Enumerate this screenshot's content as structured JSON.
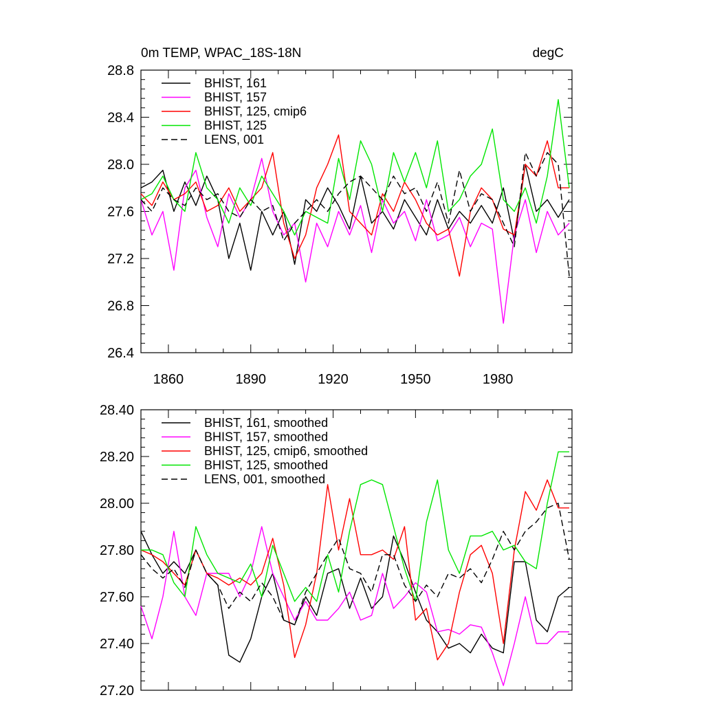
{
  "chart_data": [
    {
      "type": "line",
      "title": "0m TEMP, WPAC_18S-18N",
      "units": "degC",
      "xlabel": "",
      "ylabel": "",
      "xlim": [
        1850,
        2007
      ],
      "ylim": [
        26.4,
        28.8
      ],
      "x_ticks": [
        1860,
        1890,
        1920,
        1950,
        1980
      ],
      "x_tick_labels": [
        "1860",
        "1890",
        "1920",
        "1950",
        "1980"
      ],
      "y_ticks": [
        26.4,
        26.8,
        27.2,
        27.6,
        28.0,
        28.4,
        28.8
      ],
      "y_tick_labels": [
        "26.4",
        "26.8",
        "27.2",
        "27.6",
        "28.0",
        "28.4",
        "28.8"
      ],
      "grid": false,
      "legend_position": "top-left",
      "x": [
        1850,
        1854,
        1858,
        1862,
        1866,
        1870,
        1874,
        1878,
        1882,
        1886,
        1890,
        1894,
        1898,
        1902,
        1906,
        1910,
        1914,
        1918,
        1922,
        1926,
        1930,
        1934,
        1938,
        1942,
        1946,
        1950,
        1954,
        1958,
        1962,
        1966,
        1970,
        1974,
        1978,
        1982,
        1986,
        1990,
        1994,
        1998,
        2002,
        2006
      ],
      "series": [
        {
          "name": "BHIST, 161",
          "color": "#000000",
          "dash": "solid",
          "values": [
            27.8,
            27.85,
            27.95,
            27.6,
            27.85,
            27.65,
            27.9,
            27.7,
            27.2,
            27.5,
            27.1,
            27.6,
            27.4,
            27.6,
            27.15,
            27.7,
            27.6,
            27.8,
            27.65,
            27.45,
            27.9,
            27.5,
            27.6,
            27.45,
            27.7,
            27.55,
            27.4,
            27.7,
            27.45,
            27.6,
            27.5,
            27.65,
            27.5,
            27.8,
            27.35,
            28.0,
            27.6,
            27.7,
            27.55,
            27.7
          ]
        },
        {
          "name": "BHIST, 157",
          "color": "#ff00ff",
          "dash": "solid",
          "values": [
            27.7,
            27.4,
            27.6,
            27.1,
            27.8,
            27.95,
            27.55,
            27.3,
            27.75,
            27.55,
            27.7,
            28.05,
            27.6,
            27.4,
            27.5,
            27.0,
            27.5,
            27.3,
            27.6,
            27.4,
            27.65,
            27.25,
            27.7,
            27.5,
            27.6,
            27.35,
            27.7,
            27.35,
            27.4,
            27.55,
            27.3,
            27.5,
            27.45,
            26.65,
            27.4,
            27.7,
            27.25,
            27.6,
            27.4,
            27.5
          ]
        },
        {
          "name": "BHIST, 125, cmip6",
          "color": "#ff0000",
          "dash": "solid",
          "values": [
            27.75,
            27.65,
            27.85,
            27.7,
            27.75,
            27.85,
            27.6,
            27.65,
            27.8,
            27.6,
            27.7,
            27.8,
            28.1,
            27.5,
            27.2,
            27.4,
            27.8,
            28.0,
            28.25,
            27.6,
            27.5,
            27.4,
            27.75,
            27.6,
            27.85,
            27.7,
            27.5,
            27.4,
            27.45,
            27.05,
            27.6,
            27.8,
            27.7,
            27.45,
            27.4,
            28.0,
            27.9,
            28.2,
            27.8,
            27.8
          ]
        },
        {
          "name": "BHIST, 125",
          "color": "#00e600",
          "dash": "solid",
          "values": [
            27.7,
            27.75,
            27.9,
            27.7,
            27.6,
            28.1,
            27.8,
            27.7,
            27.5,
            27.8,
            27.65,
            27.9,
            27.75,
            27.6,
            27.4,
            27.6,
            27.55,
            27.5,
            28.05,
            27.7,
            28.2,
            28.0,
            27.6,
            28.1,
            27.85,
            28.1,
            27.8,
            28.2,
            27.6,
            27.7,
            27.9,
            28.0,
            28.3,
            27.7,
            27.6,
            27.8,
            27.5,
            27.9,
            28.55,
            27.8
          ]
        },
        {
          "name": "LENS, 001",
          "color": "#000000",
          "dash": "dashed",
          "values": [
            27.7,
            27.6,
            27.8,
            27.7,
            27.65,
            27.8,
            27.7,
            27.75,
            27.6,
            27.55,
            27.7,
            27.6,
            27.65,
            27.35,
            27.5,
            27.6,
            27.7,
            27.6,
            27.75,
            27.85,
            27.9,
            27.8,
            27.7,
            27.9,
            27.75,
            27.8,
            27.6,
            27.85,
            27.5,
            27.95,
            27.6,
            27.75,
            27.7,
            27.5,
            27.3,
            28.1,
            27.9,
            28.1,
            28.0,
            27.05
          ]
        }
      ]
    },
    {
      "type": "line",
      "title": "",
      "xlabel": "",
      "ylabel": "",
      "xlim": [
        1850,
        2007
      ],
      "ylim": [
        27.2,
        28.4
      ],
      "x_ticks": [
        1860,
        1890,
        1920,
        1950,
        1980
      ],
      "y_ticks": [
        27.2,
        27.4,
        27.6,
        27.8,
        28.0,
        28.2,
        28.4
      ],
      "y_tick_labels": [
        "27.20",
        "27.40",
        "27.60",
        "27.80",
        "28.00",
        "28.20",
        "28.40"
      ],
      "grid": false,
      "legend_position": "top-left",
      "x": [
        1850,
        1854,
        1858,
        1862,
        1866,
        1870,
        1874,
        1878,
        1882,
        1886,
        1890,
        1894,
        1898,
        1902,
        1906,
        1910,
        1914,
        1918,
        1922,
        1926,
        1930,
        1934,
        1938,
        1942,
        1946,
        1950,
        1954,
        1958,
        1962,
        1966,
        1970,
        1974,
        1978,
        1982,
        1986,
        1990,
        1994,
        1998,
        2002,
        2006
      ],
      "series": [
        {
          "name": "BHIST, 161, smoothed",
          "color": "#000000",
          "dash": "solid",
          "values": [
            27.88,
            27.78,
            27.7,
            27.75,
            27.7,
            27.8,
            27.7,
            27.65,
            27.35,
            27.32,
            27.42,
            27.6,
            27.7,
            27.5,
            27.48,
            27.6,
            27.52,
            27.7,
            27.72,
            27.55,
            27.68,
            27.55,
            27.6,
            27.86,
            27.75,
            27.62,
            27.5,
            27.45,
            27.38,
            27.4,
            27.36,
            27.44,
            27.38,
            27.36,
            27.75,
            27.75,
            27.5,
            27.45,
            27.6,
            27.64
          ]
        },
        {
          "name": "BHIST, 157, smoothed",
          "color": "#ff00ff",
          "dash": "solid",
          "values": [
            27.56,
            27.42,
            27.6,
            27.88,
            27.6,
            27.52,
            27.7,
            27.7,
            27.7,
            27.6,
            27.7,
            27.9,
            27.7,
            27.6,
            27.5,
            27.58,
            27.5,
            27.5,
            27.55,
            27.62,
            27.5,
            27.52,
            27.7,
            27.55,
            27.6,
            27.66,
            27.62,
            27.45,
            27.46,
            27.44,
            27.48,
            27.47,
            27.36,
            27.22,
            27.4,
            27.6,
            27.4,
            27.4,
            27.45,
            27.45
          ]
        },
        {
          "name": "BHIST, 125, cmip6, smoothed",
          "color": "#ff0000",
          "dash": "solid",
          "values": [
            27.8,
            27.78,
            27.75,
            27.7,
            27.65,
            27.8,
            27.7,
            27.68,
            27.65,
            27.68,
            27.65,
            27.7,
            27.85,
            27.65,
            27.34,
            27.48,
            27.7,
            28.08,
            27.8,
            28.02,
            27.78,
            27.78,
            27.8,
            27.76,
            27.9,
            27.5,
            27.55,
            27.33,
            27.4,
            27.62,
            27.78,
            27.82,
            27.7,
            27.4,
            27.8,
            28.05,
            27.97,
            28.1,
            27.98,
            27.98
          ]
        },
        {
          "name": "BHIST, 125, smoothed",
          "color": "#00e600",
          "dash": "solid",
          "values": [
            27.8,
            27.8,
            27.78,
            27.66,
            27.6,
            27.9,
            27.78,
            27.7,
            27.68,
            27.66,
            27.74,
            27.6,
            27.82,
            27.7,
            27.58,
            27.64,
            27.58,
            27.78,
            27.62,
            27.88,
            28.08,
            28.1,
            28.08,
            27.9,
            27.72,
            27.58,
            27.92,
            28.1,
            27.8,
            27.7,
            27.86,
            27.86,
            27.88,
            27.8,
            27.82,
            27.75,
            27.72,
            28.0,
            28.22,
            28.22
          ]
        },
        {
          "name": "LENS, 001, smoothed",
          "color": "#000000",
          "dash": "dashed",
          "values": [
            27.78,
            27.72,
            27.68,
            27.72,
            27.64,
            27.8,
            27.7,
            27.65,
            27.55,
            27.62,
            27.58,
            27.66,
            27.6,
            27.5,
            27.48,
            27.62,
            27.7,
            27.78,
            27.85,
            27.72,
            27.7,
            27.62,
            27.78,
            27.78,
            27.65,
            27.58,
            27.65,
            27.6,
            27.7,
            27.68,
            27.72,
            27.66,
            27.76,
            27.88,
            27.8,
            27.88,
            27.92,
            27.98,
            28.0,
            27.76
          ]
        }
      ]
    }
  ]
}
